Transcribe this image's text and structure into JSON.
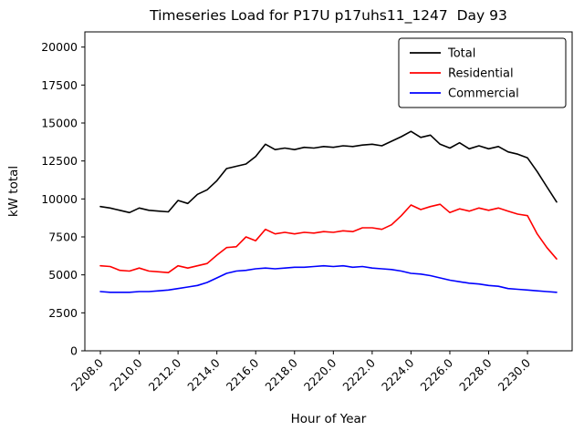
{
  "chart_data": {
    "type": "line",
    "title": "Timeseries Load for P17U p17uhs11_1247  Day 93",
    "xlabel": "Hour of Year",
    "ylabel": "kW total",
    "grid": false,
    "xlim": [
      2207.2,
      2232.3
    ],
    "ylim": [
      0,
      21000
    ],
    "xticks": [
      2208,
      2210,
      2212,
      2214,
      2216,
      2218,
      2220,
      2222,
      2224,
      2226,
      2228,
      2230
    ],
    "xtick_labels": [
      "2208.0",
      "2210.0",
      "2212.0",
      "2214.0",
      "2216.0",
      "2218.0",
      "2220.0",
      "2222.0",
      "2224.0",
      "2226.0",
      "2228.0",
      "2230.0"
    ],
    "yticks": [
      0,
      2500,
      5000,
      7500,
      10000,
      12500,
      15000,
      17500,
      20000
    ],
    "legend": {
      "position": "upper right",
      "entries": [
        "Total",
        "Residential",
        "Commercial"
      ]
    },
    "x": [
      2208.0,
      2208.5,
      2209.0,
      2209.5,
      2210.0,
      2210.5,
      2211.0,
      2211.5,
      2212.0,
      2212.5,
      2213.0,
      2213.5,
      2214.0,
      2214.5,
      2215.0,
      2215.5,
      2216.0,
      2216.5,
      2217.0,
      2217.5,
      2218.0,
      2218.5,
      2219.0,
      2219.5,
      2220.0,
      2220.5,
      2221.0,
      2221.5,
      2222.0,
      2222.5,
      2223.0,
      2223.5,
      2224.0,
      2224.5,
      2225.0,
      2225.5,
      2226.0,
      2226.5,
      2227.0,
      2227.5,
      2228.0,
      2228.5,
      2229.0,
      2229.5,
      2230.0,
      2230.5,
      2231.0,
      2231.5
    ],
    "series": [
      {
        "name": "Total",
        "color": "#000000",
        "values": [
          9500,
          9400,
          9250,
          9100,
          9400,
          9250,
          9200,
          9150,
          9900,
          9700,
          10300,
          10600,
          11200,
          12000,
          12150,
          12300,
          12800,
          13600,
          13250,
          13350,
          13250,
          13400,
          13350,
          13450,
          13400,
          13500,
          13450,
          13550,
          13600,
          13500,
          13800,
          14100,
          14450,
          14050,
          14200,
          13600,
          13350,
          13700,
          13300,
          13500,
          13300,
          13450,
          13100,
          12950,
          12700,
          11800,
          10800,
          9800
        ]
      },
      {
        "name": "Residential",
        "color": "#ff0000",
        "values": [
          5600,
          5550,
          5300,
          5250,
          5450,
          5250,
          5200,
          5150,
          5600,
          5450,
          5600,
          5750,
          6300,
          6800,
          6850,
          7500,
          7250,
          8000,
          7700,
          7800,
          7700,
          7800,
          7750,
          7850,
          7800,
          7900,
          7850,
          8100,
          8100,
          8000,
          8300,
          8900,
          9600,
          9300,
          9500,
          9650,
          9100,
          9350,
          9200,
          9400,
          9250,
          9400,
          9200,
          9000,
          8900,
          7700,
          6800,
          6050
        ]
      },
      {
        "name": "Commercial",
        "color": "#0000ff",
        "values": [
          3900,
          3850,
          3850,
          3850,
          3900,
          3900,
          3950,
          4000,
          4100,
          4200,
          4300,
          4500,
          4800,
          5100,
          5250,
          5300,
          5400,
          5450,
          5400,
          5450,
          5500,
          5500,
          5550,
          5600,
          5550,
          5600,
          5500,
          5550,
          5450,
          5400,
          5350,
          5250,
          5100,
          5050,
          4950,
          4800,
          4650,
          4550,
          4450,
          4400,
          4300,
          4250,
          4100,
          4050,
          4000,
          3950,
          3900,
          3850
        ]
      }
    ]
  }
}
